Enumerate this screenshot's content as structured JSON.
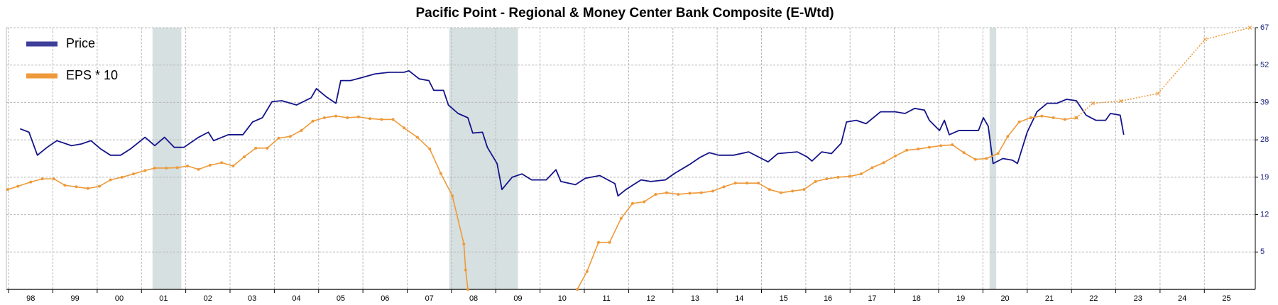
{
  "chart_data": {
    "type": "line",
    "title": "Pacific Point - Regional & Money Center Bank Composite (E-Wtd)",
    "xlim": [
      1997.95,
      2026.15
    ],
    "xticks": [
      {
        "value": 1998,
        "label": "98"
      },
      {
        "value": 1999,
        "label": "99"
      },
      {
        "value": 2000,
        "label": "00"
      },
      {
        "value": 2001,
        "label": "01"
      },
      {
        "value": 2002,
        "label": "02"
      },
      {
        "value": 2003,
        "label": "03"
      },
      {
        "value": 2004,
        "label": "04"
      },
      {
        "value": 2005,
        "label": "05"
      },
      {
        "value": 2006,
        "label": "06"
      },
      {
        "value": 2007,
        "label": "07"
      },
      {
        "value": 2008,
        "label": "08"
      },
      {
        "value": 2009,
        "label": "09"
      },
      {
        "value": 2010,
        "label": "10"
      },
      {
        "value": 2011,
        "label": "11"
      },
      {
        "value": 2012,
        "label": "12"
      },
      {
        "value": 2013,
        "label": "13"
      },
      {
        "value": 2014,
        "label": "14"
      },
      {
        "value": 2015,
        "label": "15"
      },
      {
        "value": 2016,
        "label": "16"
      },
      {
        "value": 2017,
        "label": "17"
      },
      {
        "value": 2018,
        "label": "18"
      },
      {
        "value": 2019,
        "label": "19"
      },
      {
        "value": 2020,
        "label": "20"
      },
      {
        "value": 2021,
        "label": "21"
      },
      {
        "value": 2022,
        "label": "22"
      },
      {
        "value": 2023,
        "label": "23"
      },
      {
        "value": 2024,
        "label": "24"
      },
      {
        "value": 2025,
        "label": "25"
      }
    ],
    "ylim": [
      0,
      67
    ],
    "yticks": [
      5,
      12,
      19,
      28,
      39,
      52,
      67
    ],
    "yscale": "tick-spaced",
    "grid": true,
    "legend": "top-left",
    "shaded_ranges": [
      [
        2001.25,
        2001.9
      ],
      [
        2007.95,
        2009.5
      ],
      [
        2020.15,
        2020.3
      ]
    ],
    "shade_color": "#d6e0e0",
    "series": [
      {
        "name": "Price",
        "color": "#14148a",
        "x": [
          1998.26,
          1998.46,
          1998.65,
          1998.87,
          1999.09,
          1999.42,
          1999.64,
          1999.86,
          2000.08,
          2000.3,
          2000.53,
          2000.75,
          2001.08,
          2001.3,
          2001.52,
          2001.74,
          2001.96,
          2002.29,
          2002.51,
          2002.63,
          2002.96,
          2003.29,
          2003.51,
          2003.73,
          2003.95,
          2004.17,
          2004.5,
          2004.83,
          2004.95,
          2005.17,
          2005.39,
          2005.5,
          2005.72,
          2005.94,
          2006.27,
          2006.6,
          2006.93,
          2007.04,
          2007.27,
          2007.49,
          2007.6,
          2007.82,
          2007.93,
          2008.15,
          2008.37,
          2008.48,
          2008.7,
          2008.81,
          2009.03,
          2009.14,
          2009.37,
          2009.59,
          2009.81,
          2010.14,
          2010.36,
          2010.47,
          2010.8,
          2011.02,
          2011.35,
          2011.69,
          2011.76,
          2011.94,
          2012.28,
          2012.5,
          2012.83,
          2013.05,
          2013.38,
          2013.6,
          2013.82,
          2014.04,
          2014.37,
          2014.71,
          2015.15,
          2015.37,
          2015.81,
          2016.03,
          2016.14,
          2016.36,
          2016.58,
          2016.8,
          2016.92,
          2017.14,
          2017.36,
          2017.69,
          2018.02,
          2018.24,
          2018.46,
          2018.68,
          2018.79,
          2019.02,
          2019.13,
          2019.24,
          2019.46,
          2019.68,
          2019.9,
          2020.01,
          2020.12,
          2020.23,
          2020.45,
          2020.67,
          2020.78,
          2021.0,
          2021.22,
          2021.45,
          2021.67,
          2021.89,
          2022.11,
          2022.33,
          2022.55,
          2022.77,
          2022.88,
          2023.1,
          2023.18
        ],
        "values": [
          31.25,
          30.25,
          24.3,
          26.2,
          27.8,
          26.6,
          27.0,
          27.8,
          25.8,
          24.3,
          24.3,
          25.8,
          28.75,
          26.6,
          28.75,
          26.2,
          26.2,
          28.75,
          30.25,
          27.8,
          29.5,
          29.5,
          33.25,
          34.5,
          39.3,
          39.6,
          38.25,
          40.6,
          43.8,
          41.0,
          38.75,
          46.6,
          46.6,
          47.5,
          48.9,
          49.5,
          49.5,
          50.0,
          47.2,
          46.6,
          43.2,
          43.2,
          38.25,
          35.75,
          34.5,
          30.0,
          30.25,
          26.2,
          22.3,
          16.7,
          19.0,
          19.8,
          18.5,
          18.5,
          20.8,
          18.2,
          17.6,
          18.8,
          19.4,
          17.8,
          15.5,
          16.7,
          18.5,
          18.2,
          18.5,
          20.0,
          22.1,
          23.7,
          24.9,
          24.3,
          24.3,
          25.1,
          22.7,
          24.7,
          25.1,
          23.9,
          22.9,
          25.1,
          24.7,
          27.2,
          33.25,
          33.75,
          32.75,
          36.25,
          36.25,
          35.75,
          37.25,
          36.75,
          33.75,
          30.75,
          33.75,
          29.5,
          30.75,
          30.75,
          30.75,
          34.5,
          32.0,
          22.3,
          23.5,
          23.1,
          22.3,
          30.25,
          36.25,
          38.75,
          38.75,
          40.1,
          39.6,
          35.25,
          33.75,
          33.75,
          35.75,
          35.25,
          29.5
        ]
      },
      {
        "name": "EPS * 10",
        "color": "#ee9a3a",
        "x": [
          1997.98,
          1998.21,
          1998.5,
          1998.76,
          1999.02,
          1999.27,
          1999.53,
          1999.79,
          2000.05,
          2000.3,
          2000.56,
          2000.82,
          2001.08,
          2001.3,
          2001.56,
          2001.81,
          2002.04,
          2002.29,
          2002.55,
          2002.81,
          2003.07,
          2003.32,
          2003.58,
          2003.84,
          2004.1,
          2004.36,
          2004.61,
          2004.87,
          2005.13,
          2005.39,
          2005.65,
          2005.9,
          2006.16,
          2006.42,
          2006.68,
          2006.93,
          2007.23,
          2007.51,
          2007.76,
          2008.02,
          2008.28,
          2008.32,
          2008.37,
          2009.5,
          2010.84,
          2011.06,
          2011.32,
          2011.57,
          2011.83,
          2012.09,
          2012.35,
          2012.61,
          2012.86,
          2013.12,
          2013.38,
          2013.64,
          2013.9,
          2014.15,
          2014.41,
          2014.67,
          2014.93,
          2015.18,
          2015.44,
          2015.7,
          2015.96,
          2016.22,
          2016.47,
          2016.73,
          2016.99,
          2017.25,
          2017.5,
          2017.76,
          2018.02,
          2018.28,
          2018.54,
          2018.79,
          2019.05,
          2019.31,
          2019.57,
          2019.83,
          2020.08,
          2020.34,
          2020.56,
          2020.82,
          2021.08,
          2021.33,
          2021.59,
          2021.85,
          2022.11
        ],
        "values": [
          16.7,
          17.3,
          18.1,
          18.7,
          18.7,
          17.5,
          17.2,
          16.9,
          17.3,
          18.5,
          19.0,
          19.8,
          20.6,
          21.2,
          21.2,
          21.3,
          21.7,
          20.9,
          21.9,
          22.5,
          21.7,
          23.9,
          26.0,
          26.0,
          28.5,
          29.0,
          30.75,
          33.5,
          34.5,
          35.0,
          34.5,
          34.75,
          34.25,
          34.0,
          34.0,
          31.5,
          28.75,
          25.8,
          19.9,
          15.5,
          6.5,
          2.6,
          0,
          null,
          0,
          2.4,
          6.8,
          6.8,
          11.3,
          14.1,
          14.4,
          15.8,
          16.1,
          15.8,
          16.0,
          16.1,
          16.4,
          17.2,
          17.9,
          17.9,
          17.9,
          16.7,
          16.1,
          16.4,
          16.7,
          18.2,
          18.7,
          19.0,
          19.2,
          19.8,
          21.3,
          22.5,
          24.1,
          25.5,
          25.8,
          26.2,
          26.6,
          26.8,
          24.9,
          23.3,
          23.5,
          24.7,
          29.0,
          33.25,
          34.5,
          35.0,
          34.5,
          34.0,
          34.5
        ],
        "forecast_x": [
          2022.11,
          2022.48,
          2023.12,
          2023.95,
          2025.02,
          2026.03
        ],
        "forecast_values": [
          34.5,
          38.75,
          39.5,
          42.1,
          62.3,
          67
        ]
      }
    ]
  }
}
